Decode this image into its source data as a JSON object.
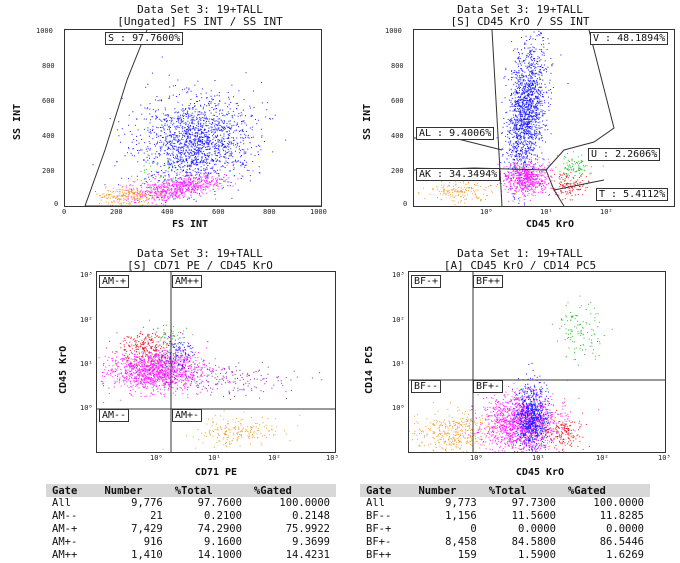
{
  "panels": [
    {
      "title1": "Data Set 3: 19+TALL",
      "title2": "[Ungated] FS INT / SS INT",
      "xlabel": "FS INT",
      "ylabel": "SS INT",
      "xticks": [
        "0",
        "200",
        "400",
        "600",
        "800",
        "1000"
      ],
      "yticks": [
        "1000",
        "800",
        "600",
        "400",
        "200",
        "0"
      ],
      "gates": [
        {
          "label": "S : 97.7600%"
        }
      ]
    },
    {
      "title1": "Data Set 3: 19+TALL",
      "title2": "[S] CD45 KrO / SS INT",
      "xlabel": "CD45 KrO",
      "ylabel": "SS INT",
      "xticks": [
        "10⁰",
        "10¹",
        "10²"
      ],
      "yticks": [
        "1000",
        "800",
        "600",
        "400",
        "200",
        "0"
      ],
      "gates": [
        {
          "label": "V : 48.1894%"
        },
        {
          "label": "AL : 9.4006%"
        },
        {
          "label": "U : 2.2606%"
        },
        {
          "label": "AK : 34.3494%"
        },
        {
          "label": "T : 5.4112%"
        }
      ]
    },
    {
      "title1": "Data Set 3: 19+TALL",
      "title2": "[S] CD71 PE / CD45 KrO",
      "xlabel": "CD71 PE",
      "ylabel": "CD45 KrO",
      "xticks": [
        "10⁰",
        "10¹",
        "10²",
        "10³"
      ],
      "yticks": [
        "10³",
        "10²",
        "10¹",
        "10⁰"
      ],
      "gates": [
        {
          "label": "AM-+"
        },
        {
          "label": "AM++"
        },
        {
          "label": "AM--"
        },
        {
          "label": "AM+-"
        }
      ]
    },
    {
      "title1": "Data Set 1: 19+TALL",
      "title2": "[A] CD45 KrO / CD14 PC5",
      "xlabel": "CD45 KrO",
      "ylabel": "CD14 PC5",
      "xticks": [
        "10⁰",
        "10¹",
        "10²",
        "10³"
      ],
      "yticks": [
        "10³",
        "10²",
        "10¹",
        "10⁰"
      ],
      "gates": [
        {
          "label": "BF-+"
        },
        {
          "label": "BF++"
        },
        {
          "label": "BF--"
        },
        {
          "label": "BF+-"
        }
      ]
    }
  ],
  "tables": [
    {
      "headers": [
        "Gate",
        "Number",
        "%Total",
        "%Gated"
      ],
      "rows": [
        [
          "All",
          "9,776",
          "97.7600",
          "100.0000"
        ],
        [
          "AM--",
          "21",
          "0.2100",
          "0.2148"
        ],
        [
          "AM-+",
          "7,429",
          "74.2900",
          "75.9922"
        ],
        [
          "AM+-",
          "916",
          "9.1600",
          "9.3699"
        ],
        [
          "AM++",
          "1,410",
          "14.1000",
          "14.4231"
        ]
      ]
    },
    {
      "headers": [
        "Gate",
        "Number",
        "%Total",
        "%Gated"
      ],
      "rows": [
        [
          "All",
          "9,773",
          "97.7300",
          "100.0000"
        ],
        [
          "BF--",
          "1,156",
          "11.5600",
          "11.8285"
        ],
        [
          "BF-+",
          "0",
          "0.0000",
          "0.0000"
        ],
        [
          "BF+-",
          "8,458",
          "84.5800",
          "86.5446"
        ],
        [
          "BF++",
          "159",
          "1.5900",
          "1.6269"
        ]
      ]
    }
  ],
  "colors": {
    "blue": "#1a1aff",
    "magenta": "#ff22ff",
    "orange": "#f0a030",
    "red": "#e02020",
    "green": "#30c030",
    "purple": "#9020c0"
  },
  "chart_data": [
    {
      "type": "scatter",
      "title": "[Ungated] FS INT / SS INT",
      "xlabel": "FS INT",
      "ylabel": "SS INT",
      "xlim": [
        0,
        1000
      ],
      "ylim": [
        0,
        1000
      ],
      "populations": [
        {
          "color": "blue",
          "x_center": 430,
          "y_center": 420,
          "approx": true
        },
        {
          "color": "magenta",
          "x_center": 280,
          "y_center": 90,
          "approx": true
        },
        {
          "color": "orange",
          "x_center": 160,
          "y_center": 40,
          "approx": true
        }
      ],
      "gates": [
        {
          "name": "S",
          "percent": 97.76
        }
      ]
    },
    {
      "type": "scatter",
      "title": "[S] CD45 KrO / SS INT",
      "xlabel": "CD45 KrO",
      "ylabel": "SS INT",
      "xscale": "log",
      "ylim": [
        0,
        1000
      ],
      "gates": [
        {
          "name": "V",
          "percent": 48.1894
        },
        {
          "name": "AL",
          "percent": 9.4006
        },
        {
          "name": "U",
          "percent": 2.2606
        },
        {
          "name": "AK",
          "percent": 34.3494
        },
        {
          "name": "T",
          "percent": 5.4112
        }
      ]
    },
    {
      "type": "scatter",
      "title": "[S] CD71 PE / CD45 KrO",
      "xlabel": "CD71 PE",
      "ylabel": "CD45 KrO",
      "xscale": "log",
      "yscale": "log",
      "gates": [
        {
          "name": "AM--",
          "percent": 0.2148
        },
        {
          "name": "AM-+",
          "percent": 75.9922
        },
        {
          "name": "AM+-",
          "percent": 9.3699
        },
        {
          "name": "AM++",
          "percent": 14.4231
        }
      ]
    },
    {
      "type": "scatter",
      "title": "[A] CD45 KrO / CD14 PC5",
      "xlabel": "CD45 KrO",
      "ylabel": "CD14 PC5",
      "xscale": "log",
      "yscale": "log",
      "gates": [
        {
          "name": "BF--",
          "percent": 11.8285
        },
        {
          "name": "BF-+",
          "percent": 0.0
        },
        {
          "name": "BF+-",
          "percent": 86.5446
        },
        {
          "name": "BF++",
          "percent": 1.6269
        }
      ]
    }
  ]
}
